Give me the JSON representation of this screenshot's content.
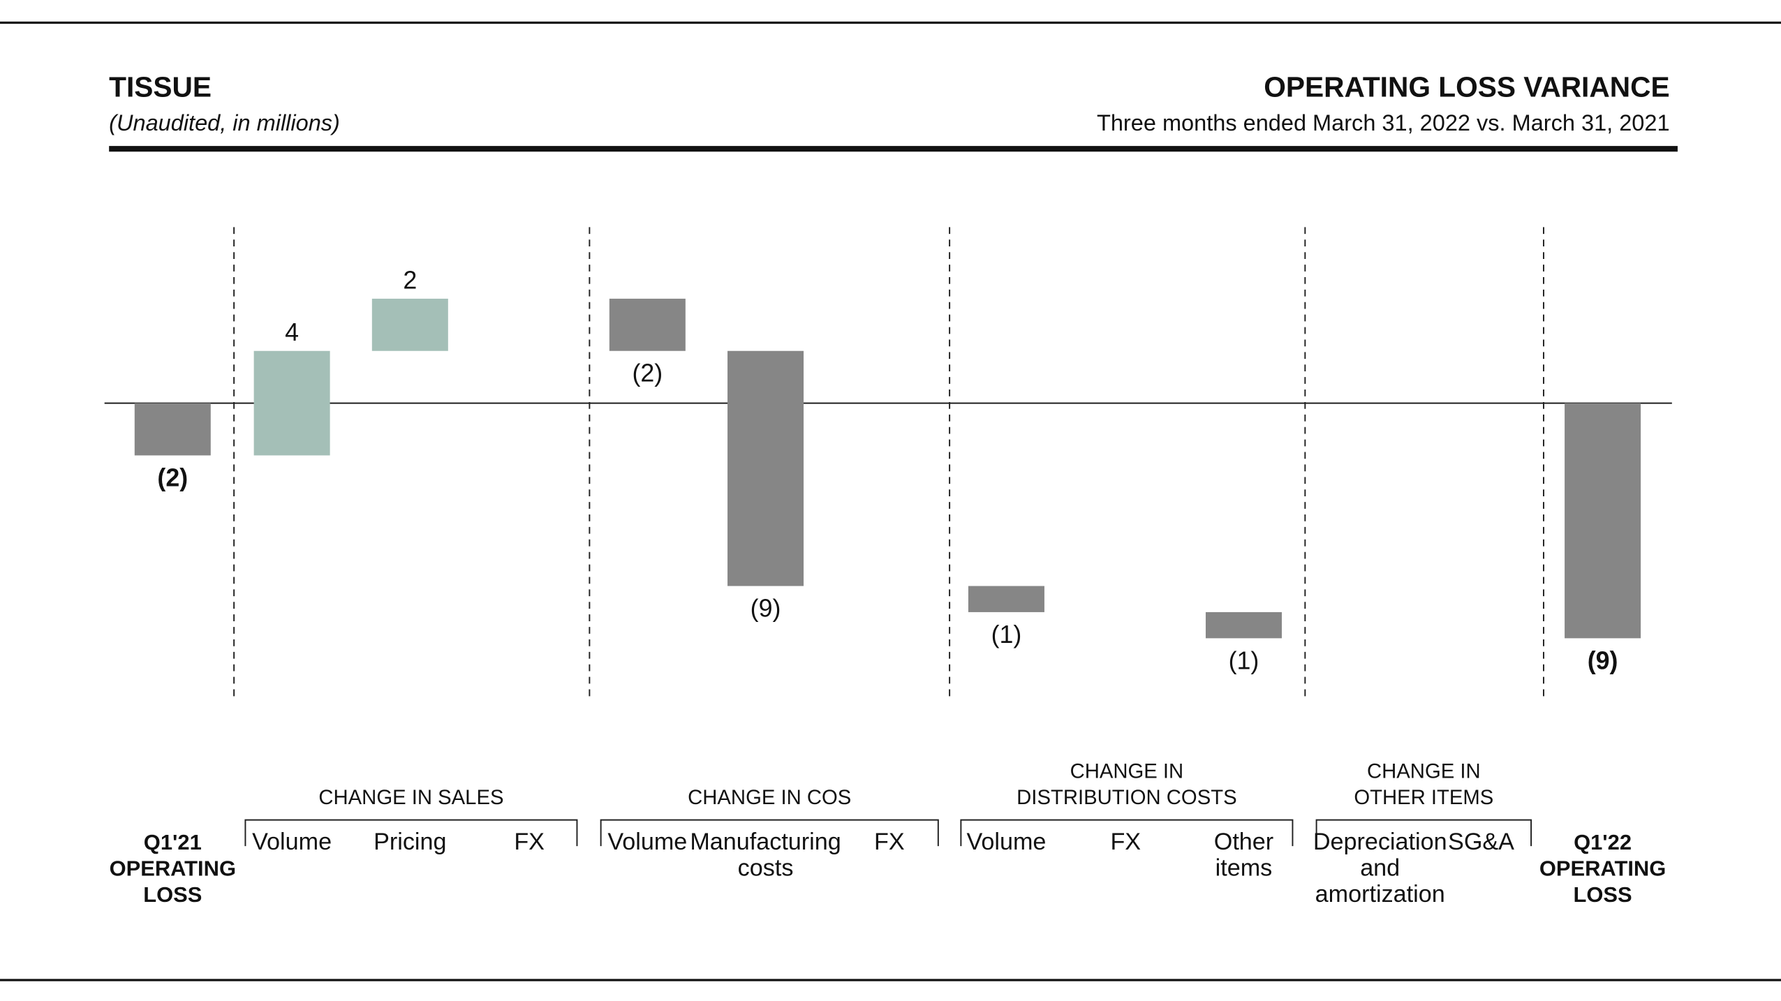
{
  "header": {
    "title": "TISSUE",
    "subtitle": "(Unaudited, in millions)",
    "right_title": "OPERATING LOSS VARIANCE",
    "right_subtitle": "Three months ended March 31, 2022 vs. March 31, 2021"
  },
  "chart_data": {
    "type": "waterfall",
    "categories": [
      [
        "Q1'21",
        "OPERATING",
        "LOSS"
      ],
      [
        "Volume"
      ],
      [
        "Pricing"
      ],
      [
        "FX"
      ],
      [
        "Volume"
      ],
      [
        "Manufacturing",
        "costs"
      ],
      [
        "FX"
      ],
      [
        "Volume"
      ],
      [
        "FX"
      ],
      [
        "Other",
        "items"
      ],
      [
        "Depreciation",
        "and",
        "amortization"
      ],
      [
        "SG&A"
      ],
      [
        "Q1'22",
        "OPERATING",
        "LOSS"
      ]
    ],
    "values": [
      -2,
      4,
      2,
      null,
      -2,
      -9,
      null,
      -1,
      null,
      -1,
      null,
      null,
      -9
    ],
    "value_labels": [
      "(2)",
      "4",
      "2",
      null,
      "(2)",
      "(9)",
      null,
      "(1)",
      null,
      "(1)",
      null,
      null,
      "(9)"
    ],
    "groups": [
      [
        "CHANGE IN SALES"
      ],
      [
        "CHANGE IN COS"
      ],
      [
        "CHANGE IN",
        "DISTRIBUTION COSTS"
      ],
      [
        "CHANGE IN",
        "OTHER ITEMS"
      ]
    ],
    "positive_color": "#a4bfb7",
    "negative_color": "#868686",
    "total_color": "#868686"
  }
}
